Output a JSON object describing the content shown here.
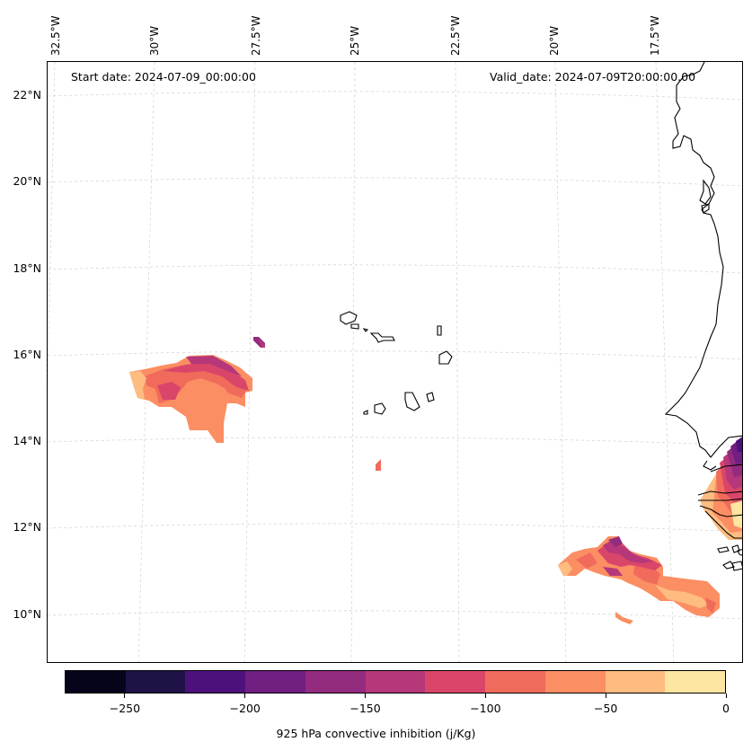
{
  "map": {
    "start_date": "Start date: 2024-07-09_00:00:00",
    "valid_date": "Valid_date: 2024-07-09T20:00:00.00",
    "lon_labels": [
      "32.5°W",
      "30°W",
      "27.5°W",
      "25°W",
      "22.5°W",
      "20°W",
      "17.5°W"
    ],
    "lat_labels": [
      "22°N",
      "20°N",
      "18°N",
      "16°N",
      "14°N",
      "12°N",
      "10°N"
    ],
    "colors": {
      "coastline": "#000000",
      "gridline": "#d0d0d0"
    }
  },
  "colorbar": {
    "title": "925 hPa convective inhibition (j/Kg)",
    "colors": [
      "#05041b",
      "#1f1247",
      "#4d117b",
      "#711f81",
      "#932b7f",
      "#b6377a",
      "#da4669",
      "#f06b5c",
      "#fb8e62",
      "#febc80",
      "#fde6a2"
    ],
    "tick_labels": [
      "−250",
      "−200",
      "−150",
      "−100",
      "−50",
      "0"
    ],
    "tick_values": [
      -250,
      -200,
      -150,
      -100,
      -50,
      0
    ],
    "range": [
      -275,
      0
    ]
  }
}
